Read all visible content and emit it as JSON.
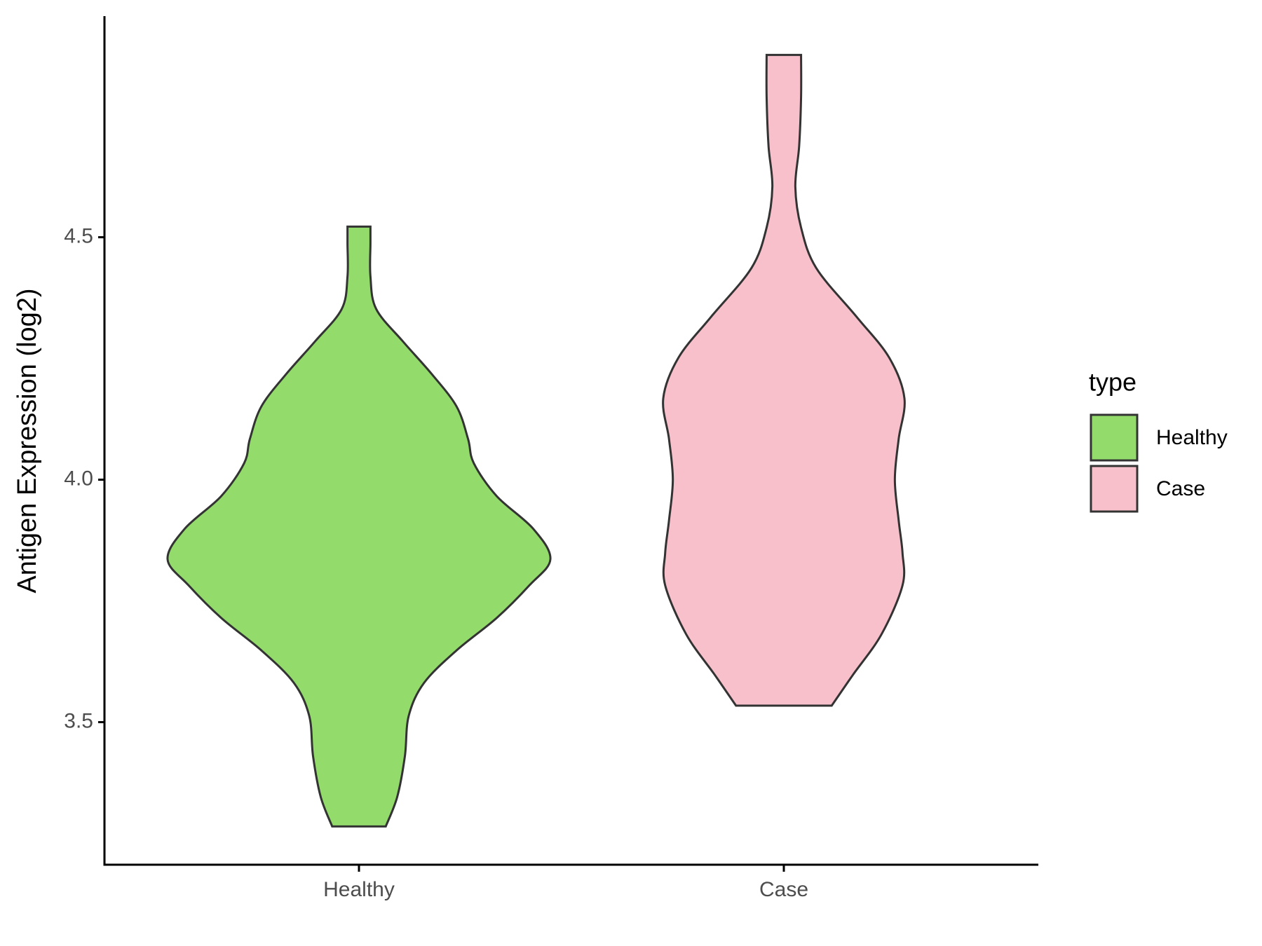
{
  "chart_data": {
    "type": "violin",
    "y_label": "Antigen Expression (log2)",
    "categories": [
      "Healthy",
      "Case"
    ],
    "ylim": [
      3.206,
      4.956
    ],
    "yticks": [
      {
        "value": 3.5,
        "label": "3.5"
      },
      {
        "value": 4.0,
        "label": "4.0"
      },
      {
        "value": 4.5,
        "label": "4.5"
      }
    ],
    "legend_title": "type",
    "legend_position": "right",
    "series": [
      {
        "name": "Healthy",
        "color": "#93dc6c",
        "y": [
          3.285,
          3.346,
          3.43,
          3.513,
          3.581,
          3.648,
          3.715,
          3.782,
          3.836,
          3.899,
          3.966,
          4.034,
          4.084,
          4.151,
          4.218,
          4.285,
          4.352,
          4.419,
          4.487,
          4.522
        ],
        "density": [
          0.14,
          0.2,
          0.24,
          0.26,
          0.34,
          0.51,
          0.72,
          0.89,
          1,
          0.91,
          0.72,
          0.6,
          0.57,
          0.51,
          0.38,
          0.23,
          0.09,
          0.06,
          0.06,
          0.06
        ]
      },
      {
        "name": "Case",
        "color": "#f7c0cb",
        "y": [
          3.534,
          3.597,
          3.681,
          3.782,
          3.849,
          3.916,
          4.0,
          4.084,
          4.168,
          4.252,
          4.336,
          4.436,
          4.52,
          4.604,
          4.688,
          4.789,
          4.876
        ],
        "density": [
          0.25,
          0.36,
          0.51,
          0.62,
          0.62,
          0.6,
          0.58,
          0.6,
          0.63,
          0.55,
          0.38,
          0.17,
          0.09,
          0.06,
          0.08,
          0.09,
          0.09
        ]
      }
    ]
  }
}
